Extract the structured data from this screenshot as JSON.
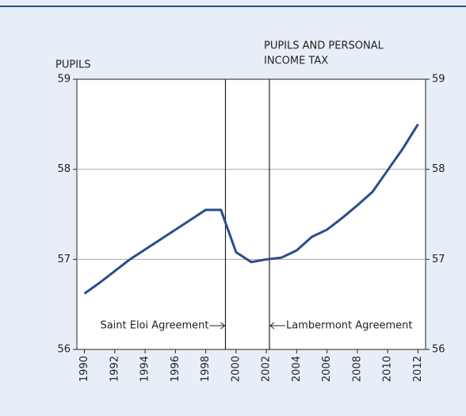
{
  "chart_data": {
    "type": "line",
    "y_label": "PUPILS",
    "y2_label": [
      "PUPILS AND PERSONAL",
      "INCOME TAX"
    ],
    "x": [
      1990,
      1991,
      1992,
      1993,
      1994,
      1995,
      1996,
      1997,
      1998,
      1999,
      2000,
      2001,
      2002,
      2003,
      2004,
      2005,
      2006,
      2007,
      2008,
      2009,
      2010,
      2011,
      2012
    ],
    "values": [
      56.62,
      56.74,
      56.87,
      57.0,
      57.11,
      57.22,
      57.33,
      57.44,
      57.55,
      57.55,
      57.08,
      56.97,
      57.0,
      57.02,
      57.1,
      57.25,
      57.33,
      57.46,
      57.6,
      57.75,
      57.99,
      58.23,
      58.5
    ],
    "color": "#2b4d8c",
    "xlim": [
      1989.5,
      2012.5
    ],
    "xticks": [
      1990,
      1992,
      1994,
      1996,
      1998,
      2000,
      2002,
      2004,
      2006,
      2008,
      2010,
      2012
    ],
    "ylim": [
      56,
      59
    ],
    "yticks": [
      56,
      57,
      58,
      59
    ],
    "y2lim": [
      56,
      59
    ],
    "y2ticks": [
      56,
      57,
      58,
      59
    ],
    "grid": true,
    "annotations": [
      {
        "text": "Saint Eloi Agreement",
        "x": 1999.3,
        "side": "left"
      },
      {
        "text": "Lambermont Agreement",
        "x": 2002.2,
        "side": "right"
      }
    ]
  }
}
